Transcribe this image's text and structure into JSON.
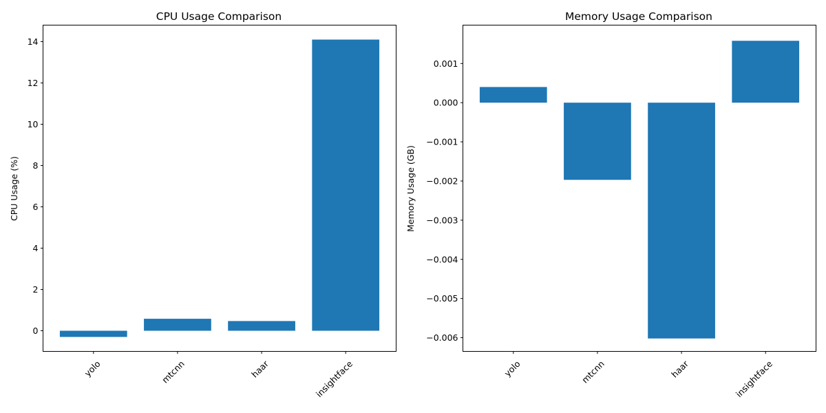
{
  "chart_data": [
    {
      "type": "bar",
      "title": "CPU Usage Comparison",
      "xlabel": "",
      "ylabel": "CPU Usage (%)",
      "categories": [
        "yolo",
        "mtcnn",
        "haar",
        "insightface"
      ],
      "values": [
        -0.3,
        0.58,
        0.47,
        14.1
      ],
      "ylim": [
        -1.0,
        14.8
      ],
      "yticks": [
        0,
        2,
        4,
        6,
        8,
        10,
        12,
        14
      ],
      "ytick_labels": [
        "0",
        "2",
        "4",
        "6",
        "8",
        "10",
        "12",
        "14"
      ],
      "bar_color": "#1f77b4",
      "grid": false,
      "xtick_rotation": 45
    },
    {
      "type": "bar",
      "title": "Memory Usage Comparison",
      "xlabel": "",
      "ylabel": "Memory Usage (GB)",
      "categories": [
        "yolo",
        "mtcnn",
        "haar",
        "insightface"
      ],
      "values": [
        0.0004,
        -0.00197,
        -0.00602,
        0.00158
      ],
      "ylim": [
        -0.00635,
        0.00198
      ],
      "yticks": [
        0.001,
        0.0,
        -0.001,
        -0.002,
        -0.003,
        -0.004,
        -0.005,
        -0.006
      ],
      "ytick_labels": [
        "0.001",
        "0.000",
        "−0.001",
        "−0.002",
        "−0.003",
        "−0.004",
        "−0.005",
        "−0.006"
      ],
      "bar_color": "#1f77b4",
      "grid": false,
      "xtick_rotation": 45
    }
  ]
}
